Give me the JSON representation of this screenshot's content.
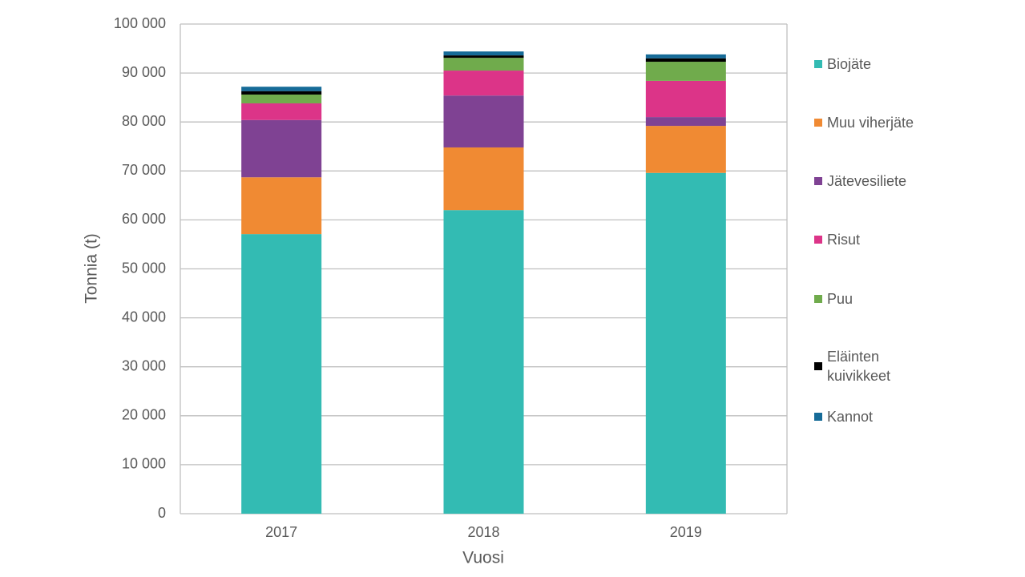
{
  "chart_data": {
    "type": "stacked_bar",
    "x_label": "Vuosi",
    "y_label": "Tonnia (t)",
    "categories": [
      "2017",
      "2018",
      "2019"
    ],
    "series": [
      {
        "name": "Biojäte",
        "color": "#33bbb3",
        "values": [
          57100,
          62000,
          69600
        ]
      },
      {
        "name": "Muu viherjäte",
        "color": "#f08a33",
        "values": [
          11600,
          12800,
          9600
        ]
      },
      {
        "name": "Jätevesiliete",
        "color": "#7f4293",
        "values": [
          11700,
          10600,
          1800
        ]
      },
      {
        "name": "Risut",
        "color": "#dc3488",
        "values": [
          3400,
          5100,
          7400
        ]
      },
      {
        "name": "Puu",
        "color": "#70ab4c",
        "values": [
          1800,
          2600,
          3900
        ]
      },
      {
        "name": "Eläinten kuivikkeet",
        "color": "#000000",
        "values": [
          700,
          500,
          700
        ]
      },
      {
        "name": "Kannot",
        "color": "#166b98",
        "values": [
          900,
          800,
          800
        ]
      }
    ],
    "ylim": [
      0,
      100000
    ],
    "yticks": [
      0,
      {
        "value": 10000,
        "label": "10 000"
      },
      {
        "value": 20000,
        "label": "20 000"
      },
      {
        "value": 30000,
        "label": "30 000"
      },
      {
        "value": 40000,
        "label": "40 000"
      },
      {
        "value": 50000,
        "label": "50 000"
      },
      {
        "value": 60000,
        "label": "60 000"
      },
      {
        "value": 70000,
        "label": "70 000"
      },
      {
        "value": 80000,
        "label": "80 000"
      },
      {
        "value": 90000,
        "label": "90 000"
      },
      {
        "value": 100000,
        "label": "100 000"
      }
    ],
    "grid": true,
    "legend": "right"
  }
}
